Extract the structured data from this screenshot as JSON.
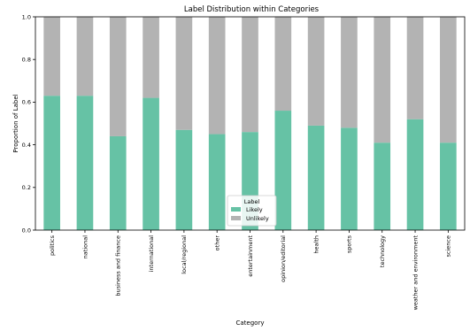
{
  "chart_data": {
    "type": "bar",
    "stacked": true,
    "title": "Label Distribution within Categories",
    "xlabel": "Category",
    "ylabel": "Proportion of Label",
    "ylim": [
      0,
      1.0
    ],
    "yticks": [
      "0.0",
      "0.2",
      "0.4",
      "0.6",
      "0.8",
      "1.0"
    ],
    "grid": false,
    "categories": [
      "politics",
      "national",
      "business and finance",
      "international",
      "local/regional",
      "other",
      "entertainment",
      "opinion/editorial",
      "health",
      "sports",
      "technology",
      "weather and environment",
      "science"
    ],
    "series": [
      {
        "name": "Likely",
        "color": "#66c2a5",
        "values": [
          0.63,
          0.63,
          0.44,
          0.62,
          0.47,
          0.45,
          0.46,
          0.56,
          0.49,
          0.48,
          0.41,
          0.52,
          0.41
        ]
      },
      {
        "name": "Unlikely",
        "color": "#b3b3b3",
        "values": [
          0.37,
          0.37,
          0.56,
          0.38,
          0.53,
          0.55,
          0.54,
          0.44,
          0.51,
          0.52,
          0.59,
          0.48,
          0.59
        ]
      }
    ],
    "legend": {
      "title": "Label",
      "placement": "bottom-center"
    }
  }
}
